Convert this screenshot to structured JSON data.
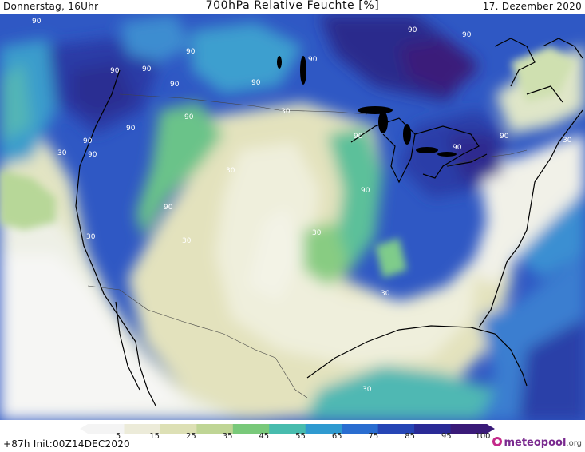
{
  "header": {
    "left": "Donnerstag, 16Uhr",
    "title": "700hPa Relative Feuchte [%]",
    "right": "17. Dezember 2020"
  },
  "map": {
    "region": "Nordamerika",
    "contour_labels": [
      {
        "text": "90"
      },
      {
        "text": "90"
      },
      {
        "text": "90"
      },
      {
        "text": "90"
      },
      {
        "text": "90"
      },
      {
        "text": "90"
      },
      {
        "text": "90"
      },
      {
        "text": "90"
      },
      {
        "text": "90"
      },
      {
        "text": "90"
      },
      {
        "text": "90"
      },
      {
        "text": "90"
      },
      {
        "text": "90"
      },
      {
        "text": "90"
      },
      {
        "text": "90"
      },
      {
        "text": "90"
      },
      {
        "text": "90"
      },
      {
        "text": "90"
      },
      {
        "text": "30"
      },
      {
        "text": "30"
      },
      {
        "text": "30"
      },
      {
        "text": "30"
      },
      {
        "text": "30"
      },
      {
        "text": "30"
      },
      {
        "text": "30"
      },
      {
        "text": "30"
      },
      {
        "text": "30"
      }
    ]
  },
  "colorbar": {
    "ticks": [
      "5",
      "15",
      "25",
      "35",
      "45",
      "55",
      "65",
      "75",
      "85",
      "95",
      "100"
    ],
    "colors": [
      "#f4f4f4",
      "#ecebd9",
      "#dde0b5",
      "#bfd595",
      "#79c97a",
      "#48bcae",
      "#2f9ad0",
      "#2a6dd0",
      "#2645b5",
      "#2a2a96",
      "#3a1a78"
    ]
  },
  "footer": {
    "run_info": "+87h Init:00Z14DEC2020",
    "brand_main": "meteopool",
    "brand_tld": ".org"
  }
}
